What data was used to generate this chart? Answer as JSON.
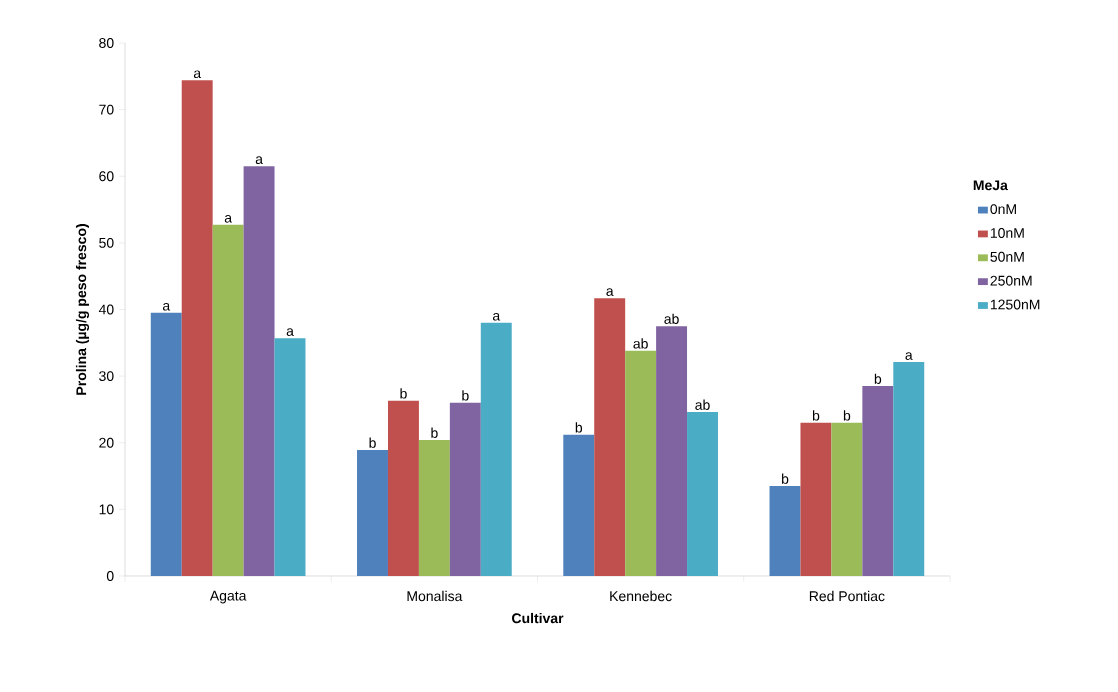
{
  "chart_data": {
    "type": "bar",
    "xlabel": "Cultivar",
    "ylabel": "Prolina (µg/g peso fresco)",
    "legend_title": "MeJa",
    "legend": "right",
    "categories": [
      "Agata",
      "Monalisa",
      "Kennebec",
      "Red Pontiac"
    ],
    "ylim": [
      0,
      80
    ],
    "yticks": [
      0,
      10,
      20,
      30,
      40,
      50,
      60,
      70,
      80
    ],
    "series": [
      {
        "name": "0nM",
        "color": "#4f81bd",
        "values": [
          39.5,
          18.9,
          21.2,
          13.5
        ],
        "value_labels": [
          "a",
          "b",
          "b",
          "b"
        ]
      },
      {
        "name": "10nM",
        "color": "#c0504d",
        "values": [
          74.4,
          26.3,
          41.7,
          23.0
        ],
        "value_labels": [
          "a",
          "b",
          "a",
          "b"
        ]
      },
      {
        "name": "50nM",
        "color": "#9bbb59",
        "values": [
          52.7,
          20.4,
          33.8,
          23.0
        ],
        "value_labels": [
          "a",
          "b",
          "ab",
          "b"
        ]
      },
      {
        "name": "250nM",
        "color": "#8064a2",
        "values": [
          61.5,
          26.0,
          37.5,
          28.5
        ],
        "value_labels": [
          "a",
          "b",
          "ab",
          "b"
        ]
      },
      {
        "name": "1250nM",
        "color": "#4bacc6",
        "values": [
          35.7,
          38.0,
          24.6,
          32.1
        ],
        "value_labels": [
          "a",
          "a",
          "ab",
          "a"
        ]
      }
    ]
  }
}
